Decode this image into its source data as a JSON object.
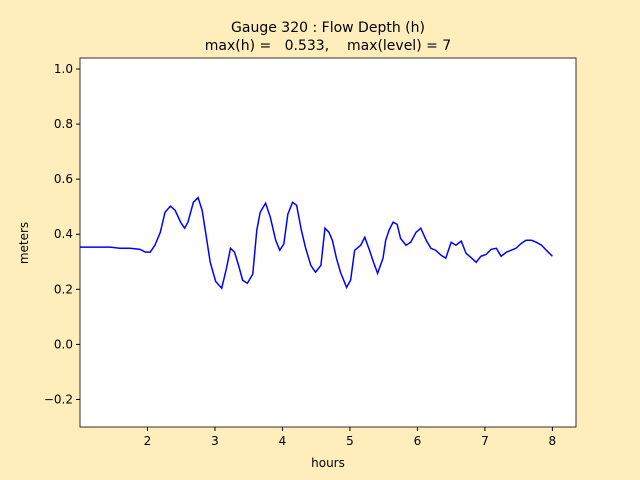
{
  "chart_data": {
    "type": "line",
    "title": "Gauge 320 : Flow Depth (h)",
    "subtitle": "max(h) =   0.533,    max(level) = 7",
    "x_label": "hours",
    "y_label": "meters",
    "x": [
      1.0,
      1.45,
      1.59,
      1.74,
      1.89,
      1.97,
      2.04,
      2.11,
      2.19,
      2.26,
      2.34,
      2.41,
      2.49,
      2.55,
      2.6,
      2.68,
      2.75,
      2.81,
      2.87,
      2.93,
      3.01,
      3.1,
      3.17,
      3.23,
      3.29,
      3.35,
      3.41,
      3.48,
      3.56,
      3.62,
      3.67,
      3.75,
      3.82,
      3.9,
      3.96,
      4.02,
      4.08,
      4.15,
      4.21,
      4.28,
      4.34,
      4.42,
      4.49,
      4.57,
      4.63,
      4.69,
      4.74,
      4.8,
      4.86,
      4.95,
      5.01,
      5.07,
      5.16,
      5.22,
      5.29,
      5.35,
      5.41,
      5.49,
      5.53,
      5.58,
      5.64,
      5.7,
      5.75,
      5.83,
      5.9,
      5.98,
      6.05,
      6.13,
      6.2,
      6.27,
      6.35,
      6.42,
      6.5,
      6.57,
      6.65,
      6.72,
      6.79,
      6.87,
      6.94,
      7.02,
      7.09,
      7.17,
      7.24,
      7.32,
      7.39,
      7.46,
      7.54,
      7.61,
      7.69,
      7.76,
      7.84,
      7.91,
      8.0
    ],
    "series": [
      {
        "name": "h",
        "color": "#0000ff",
        "values": [
          0.353,
          0.353,
          0.349,
          0.349,
          0.345,
          0.335,
          0.335,
          0.36,
          0.407,
          0.48,
          0.502,
          0.487,
          0.444,
          0.422,
          0.444,
          0.516,
          0.533,
          0.487,
          0.393,
          0.298,
          0.229,
          0.204,
          0.276,
          0.349,
          0.335,
          0.287,
          0.233,
          0.222,
          0.255,
          0.415,
          0.48,
          0.513,
          0.462,
          0.378,
          0.342,
          0.364,
          0.473,
          0.516,
          0.505,
          0.415,
          0.353,
          0.287,
          0.262,
          0.287,
          0.422,
          0.407,
          0.378,
          0.313,
          0.262,
          0.207,
          0.233,
          0.342,
          0.36,
          0.389,
          0.342,
          0.298,
          0.258,
          0.313,
          0.378,
          0.415,
          0.444,
          0.436,
          0.385,
          0.36,
          0.371,
          0.407,
          0.422,
          0.378,
          0.349,
          0.342,
          0.324,
          0.313,
          0.371,
          0.36,
          0.375,
          0.331,
          0.316,
          0.298,
          0.32,
          0.327,
          0.345,
          0.349,
          0.32,
          0.335,
          0.342,
          0.349,
          0.367,
          0.378,
          0.378,
          0.371,
          0.36,
          0.342,
          0.32
        ]
      }
    ],
    "xlim": [
      1.0,
      8.35
    ],
    "xticks": [
      2,
      3,
      4,
      5,
      6,
      7,
      8
    ],
    "ylim": [
      -0.3,
      1.04
    ],
    "yticks": [
      {
        "value": -0.2,
        "label": "−0.2"
      },
      {
        "value": 0,
        "label": "0.0"
      },
      0.2,
      0.4,
      0.6,
      0.8,
      {
        "value": 1,
        "label": "1.0"
      }
    ]
  }
}
